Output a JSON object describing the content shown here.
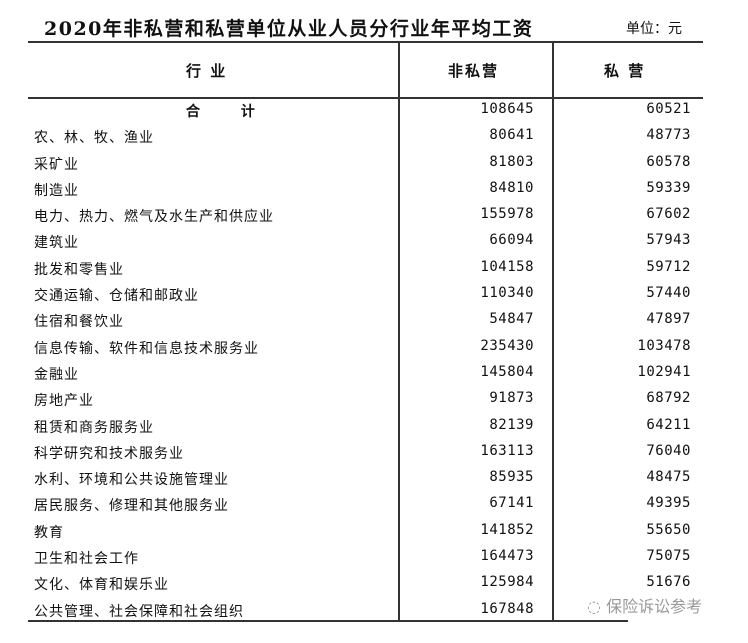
{
  "title": "2020年非私营和私营单位从业人员分行业年平均工资",
  "unit": "单位：元",
  "headers": {
    "industry": "行 业",
    "non_private": "非私营",
    "private": "私 营"
  },
  "rows": [
    {
      "name": "合 计",
      "non_private": "108645",
      "private": "60521"
    },
    {
      "name": "农、林、牧、渔业",
      "non_private": "80641",
      "private": "48773"
    },
    {
      "name": "采矿业",
      "non_private": "81803",
      "private": "60578"
    },
    {
      "name": "制造业",
      "non_private": "84810",
      "private": "59339"
    },
    {
      "name": "电力、热力、燃气及水生产和供应业",
      "non_private": "155978",
      "private": "67602"
    },
    {
      "name": "建筑业",
      "non_private": "66094",
      "private": "57943"
    },
    {
      "name": "批发和零售业",
      "non_private": "104158",
      "private": "59712"
    },
    {
      "name": "交通运输、仓储和邮政业",
      "non_private": "110340",
      "private": "57440"
    },
    {
      "name": "住宿和餐饮业",
      "non_private": "54847",
      "private": "47897"
    },
    {
      "name": "信息传输、软件和信息技术服务业",
      "non_private": "235430",
      "private": "103478"
    },
    {
      "name": "金融业",
      "non_private": "145804",
      "private": "102941"
    },
    {
      "name": "房地产业",
      "non_private": "91873",
      "private": "68792"
    },
    {
      "name": "租赁和商务服务业",
      "non_private": "82139",
      "private": "64211"
    },
    {
      "name": "科学研究和技术服务业",
      "non_private": "163113",
      "private": "76040"
    },
    {
      "name": "水利、环境和公共设施管理业",
      "non_private": "85935",
      "private": "48475"
    },
    {
      "name": "居民服务、修理和其他服务业",
      "non_private": "67141",
      "private": "49395"
    },
    {
      "name": "教育",
      "non_private": "141852",
      "private": "55650"
    },
    {
      "name": "卫生和社会工作",
      "non_private": "164473",
      "private": "75075"
    },
    {
      "name": "文化、体育和娱乐业",
      "non_private": "125984",
      "private": "51676"
    },
    {
      "name": "公共管理、社会保障和社会组织",
      "non_private": "167848",
      "private": ""
    }
  ],
  "watermark": "保险诉讼参考"
}
